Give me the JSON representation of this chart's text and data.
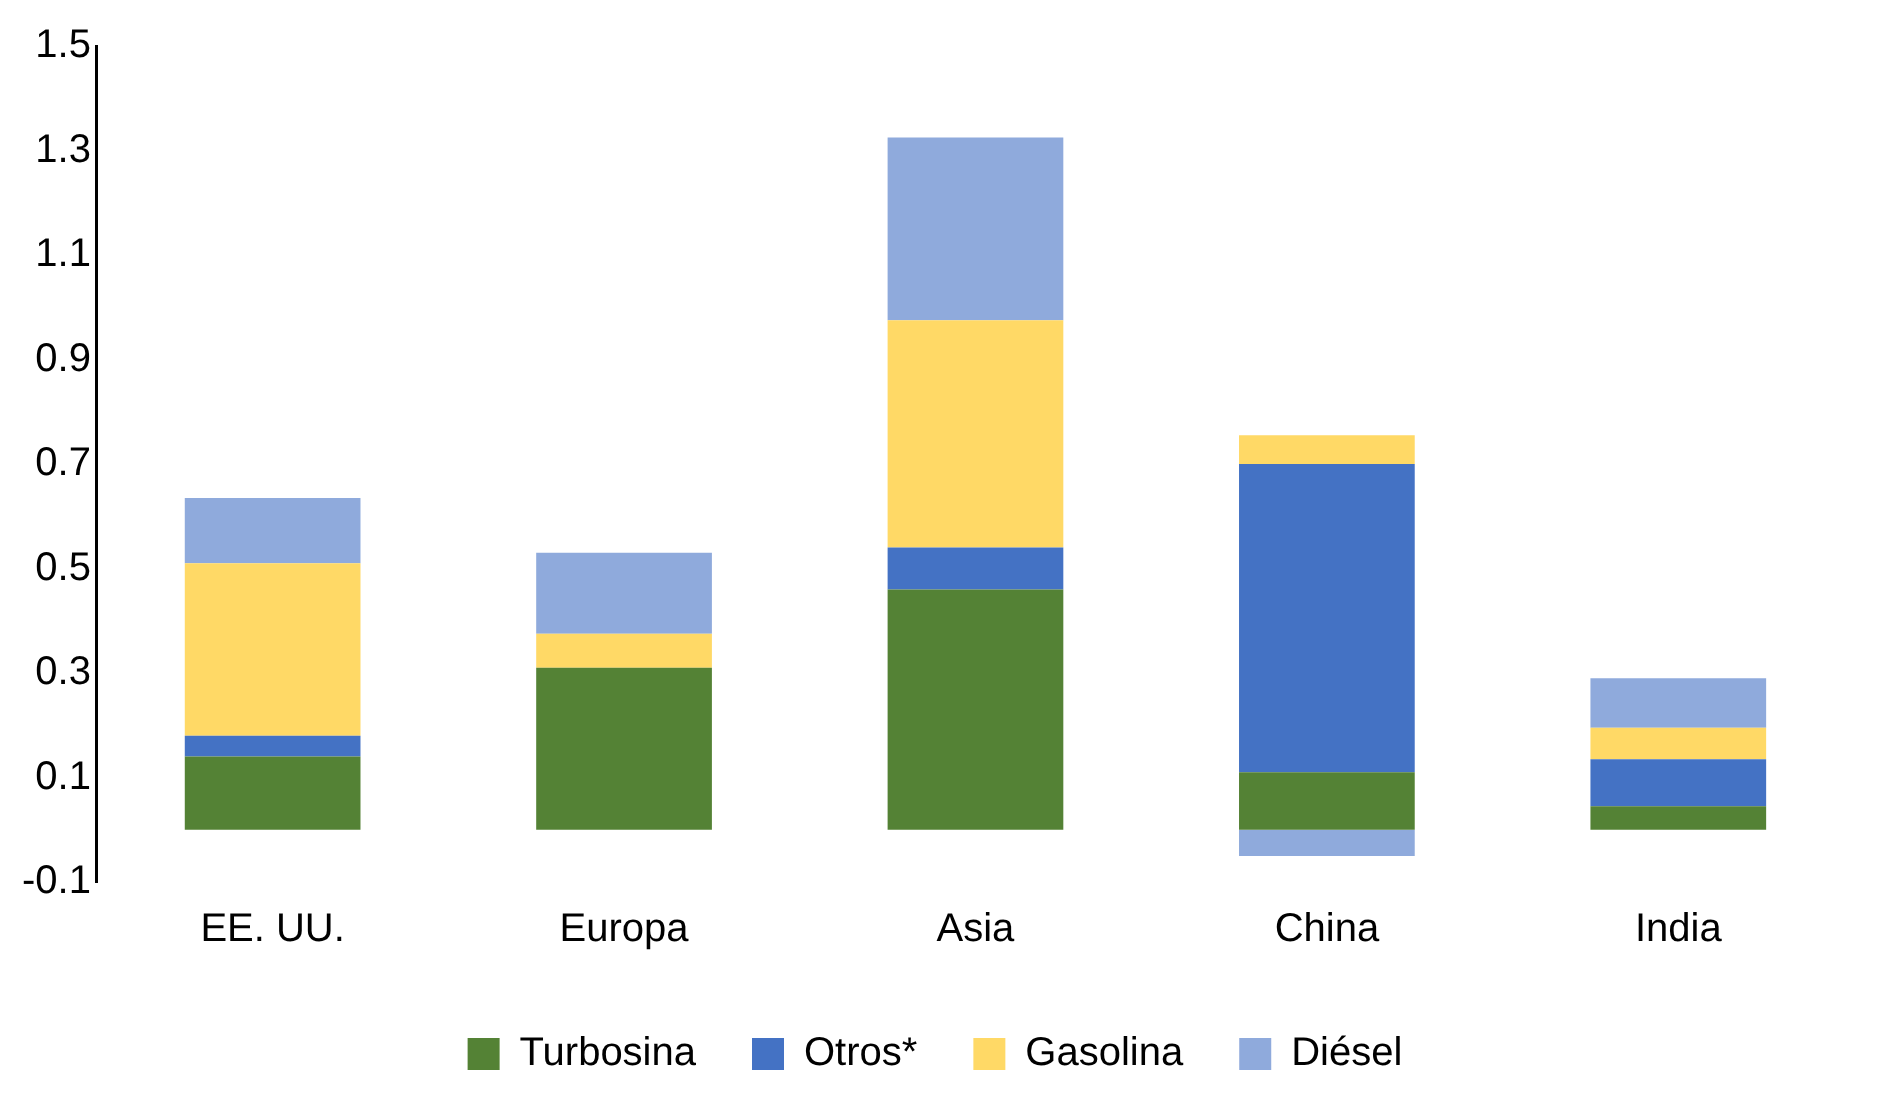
{
  "chart_data": {
    "type": "bar",
    "stacked": true,
    "categories": [
      "EE. UU.",
      "Europa",
      "Asia",
      "China",
      "India"
    ],
    "series": [
      {
        "name": "Turbosina",
        "color": "#548235",
        "values": [
          0.14,
          0.31,
          0.46,
          0.11,
          0.045
        ]
      },
      {
        "name": "Otros*",
        "color": "#4472c4",
        "values": [
          0.04,
          0,
          0.08,
          0.59,
          0.09
        ]
      },
      {
        "name": "Gasolina",
        "color": "#ffd966",
        "values": [
          0.33,
          0.065,
          0.435,
          0.055,
          0.06
        ]
      },
      {
        "name": "Diésel",
        "color": "#8faadc",
        "values": [
          0.125,
          0.155,
          0.35,
          -0.05,
          0.095
        ]
      }
    ],
    "ylim": [
      -0.1,
      1.5
    ],
    "yticks": [
      -0.1,
      0.1,
      0.3,
      0.5,
      0.7,
      0.9,
      1.1,
      1.3,
      1.5
    ],
    "grid": false,
    "legend": "bottom"
  }
}
